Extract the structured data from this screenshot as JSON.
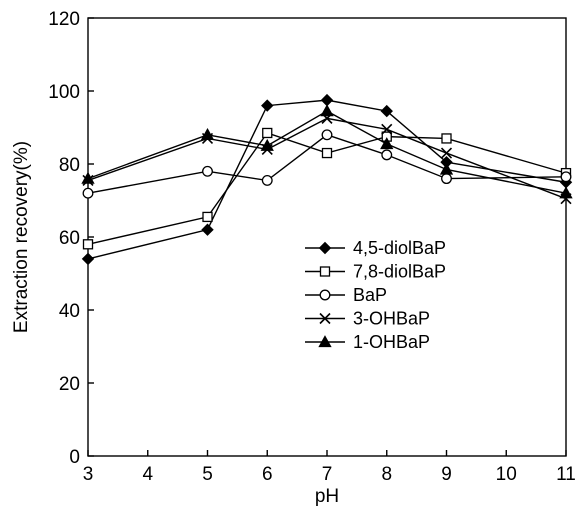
{
  "chart_data": {
    "type": "line",
    "xlabel": "pH",
    "ylabel": "Extraction recovery(%)",
    "xlim": [
      3,
      11
    ],
    "ylim": [
      0,
      120
    ],
    "xticks": [
      3,
      4,
      5,
      6,
      7,
      8,
      9,
      10,
      11
    ],
    "yticks": [
      0,
      20,
      40,
      60,
      80,
      100,
      120
    ],
    "grid": false,
    "legend": "center-right",
    "x": [
      3,
      5,
      6,
      7,
      8,
      9,
      11
    ],
    "series": [
      {
        "name": "4,5-diolBaP",
        "marker": "diamond-filled",
        "values": [
          54,
          62,
          96,
          97.5,
          94.5,
          80.5,
          75
        ]
      },
      {
        "name": "7,8-diolBaP",
        "marker": "square-open",
        "values": [
          58,
          65.5,
          88.5,
          83,
          87.5,
          87,
          77.5
        ]
      },
      {
        "name": "BaP",
        "marker": "circle-open",
        "values": [
          72,
          78,
          75.5,
          88,
          82.5,
          76,
          76.5
        ]
      },
      {
        "name": "3-OHBaP",
        "marker": "x",
        "values": [
          75.5,
          87,
          84,
          92.5,
          89.5,
          83,
          70.5
        ]
      },
      {
        "name": "1-OHBaP",
        "marker": "triangle-filled",
        "values": [
          76,
          88,
          85,
          94.5,
          85.5,
          78.5,
          72
        ]
      }
    ]
  }
}
